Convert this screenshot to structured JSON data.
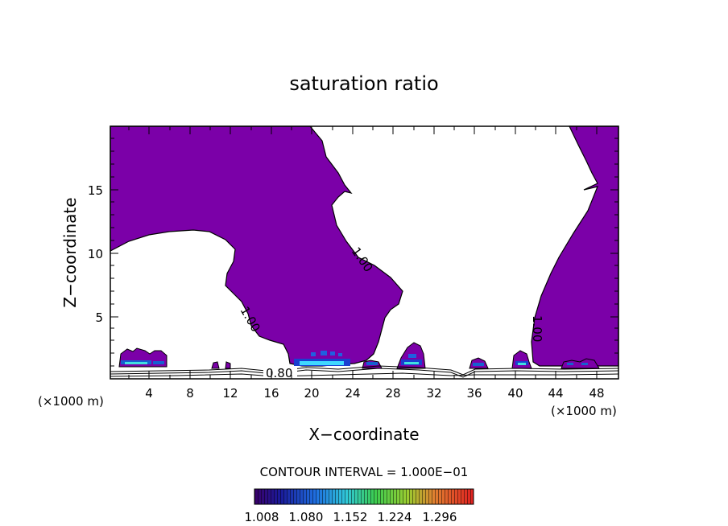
{
  "chart_data": {
    "type": "contour",
    "title": "saturation ratio",
    "xlabel": "X−coordinate",
    "ylabel": "Z−coordinate",
    "x_unit_label": "(×1000 m)",
    "xlim": [
      0,
      50
    ],
    "ylim": [
      0,
      20
    ],
    "x_ticks": [
      "4",
      "8",
      "12",
      "16",
      "20",
      "24",
      "28",
      "32",
      "36",
      "40",
      "44",
      "48"
    ],
    "y_ticks": [
      "5",
      "10",
      "15"
    ],
    "contour_labels": [
      "1.00",
      "1.00",
      "1.00",
      "0.80"
    ],
    "contour_interval_text": "CONTOUR INTERVAL = 1.000E−01",
    "colorbar_ticks": [
      "1.008",
      "1.080",
      "1.152",
      "1.224",
      "1.296"
    ],
    "fill_color": "#7b00a8",
    "regions": [
      {
        "name": "upper-left supersaturated",
        "level": ">1.0"
      },
      {
        "name": "right-side supersaturated",
        "level": ">1.0"
      },
      {
        "name": "low-level cloud cells",
        "level": "1.0-1.3"
      }
    ]
  }
}
